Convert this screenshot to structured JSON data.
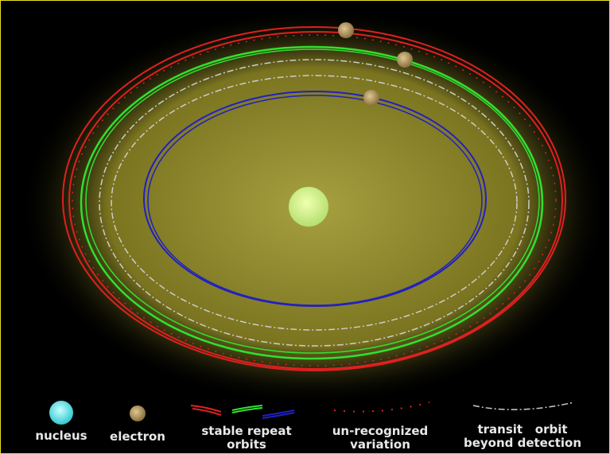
{
  "legend": {
    "items": [
      {
        "lines": [
          "nucleus"
        ]
      },
      {
        "lines": [
          "electron"
        ]
      },
      {
        "lines": [
          "stable repeat",
          "orbits"
        ]
      },
      {
        "lines": [
          "un-recognized",
          "variation"
        ]
      },
      {
        "lines": [
          "transit   orbit",
          "beyond detection"
        ]
      }
    ]
  }
}
